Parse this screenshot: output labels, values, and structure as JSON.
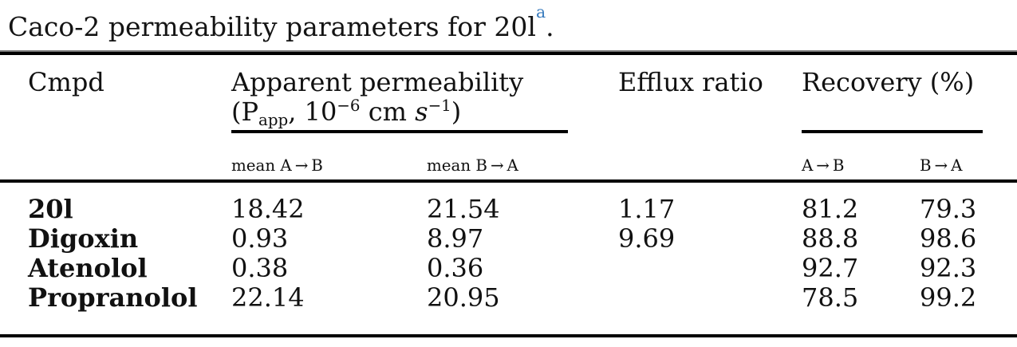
{
  "title": {
    "text": "Caco-2 permeability parameters for 20l",
    "footnote_marker": "a",
    "period": "."
  },
  "colors": {
    "footnote_marker_blue": "#3a7cbe",
    "text": "#111111",
    "rule_black": "#000000",
    "rule_gray": "#7a7a7a"
  },
  "table": {
    "header": {
      "cmpd": "Cmpd",
      "apparent_permeability": {
        "line1": "Apparent permeability",
        "p_open": "(P",
        "p_sub": "app",
        "p_mid": ", 10",
        "p_exp1": "−6",
        "p_cm": " cm ",
        "p_s": "s",
        "p_exp2": "−1",
        "p_close": ")"
      },
      "efflux_ratio": "Efflux ratio",
      "recovery": "Recovery (%)",
      "sub": {
        "mean_ab": "mean A → B",
        "mean_ba": "mean B → A",
        "ab": "A → B",
        "ba": "B → A"
      }
    },
    "rows": [
      {
        "cmpd": "20l",
        "mean_ab": "18.42",
        "mean_ba": "21.54",
        "efflux": "1.17",
        "rec_ab": "81.2",
        "rec_ba": "79.3"
      },
      {
        "cmpd": "Digoxin",
        "mean_ab": "0.93",
        "mean_ba": "8.97",
        "efflux": "9.69",
        "rec_ab": "88.8",
        "rec_ba": "98.6"
      },
      {
        "cmpd": "Atenolol",
        "mean_ab": "0.38",
        "mean_ba": "0.36",
        "efflux": "",
        "rec_ab": "92.7",
        "rec_ba": "92.3"
      },
      {
        "cmpd": "Propranolol",
        "mean_ab": "22.14",
        "mean_ba": "20.95",
        "efflux": "",
        "rec_ab": "78.5",
        "rec_ba": "99.2"
      }
    ]
  }
}
